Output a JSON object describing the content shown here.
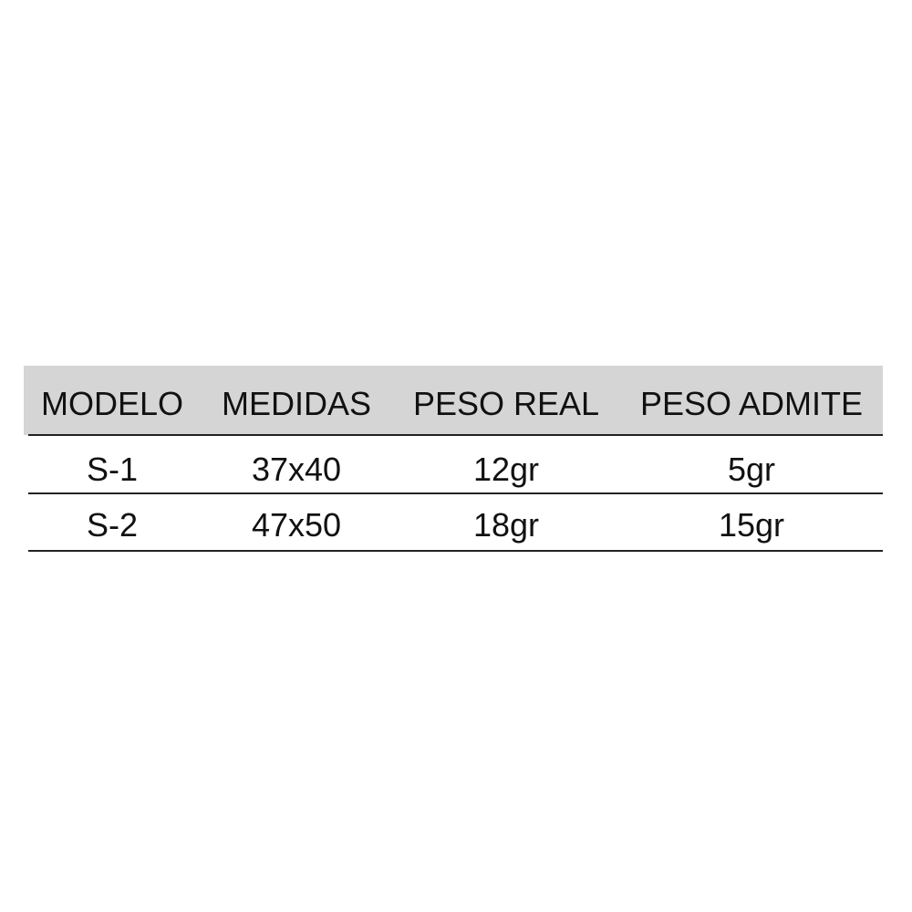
{
  "table": {
    "headers": [
      "MODELO",
      "MEDIDAS",
      "PESO REAL",
      "PESO ADMITE"
    ],
    "rows": [
      [
        "S-1",
        "37x40",
        "12gr",
        "5gr"
      ],
      [
        "S-2",
        "47x50",
        "18gr",
        "15gr"
      ]
    ],
    "header_background": "#d5d5d5"
  }
}
